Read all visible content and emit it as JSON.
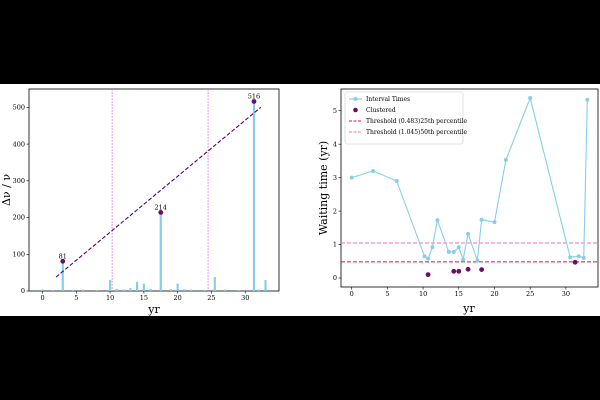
{
  "chart_data": [
    {
      "type": "bar",
      "xlabel": "yr",
      "ylabel": "Δν / ν",
      "xlim": [
        -2,
        35
      ],
      "ylim": [
        0,
        550
      ],
      "xticks": [
        0,
        5,
        10,
        15,
        20,
        25,
        30
      ],
      "yticks": [
        0,
        100,
        200,
        300,
        400,
        500
      ],
      "bars": [
        {
          "x": 0,
          "y": 4
        },
        {
          "x": 1.5,
          "y": 3
        },
        {
          "x": 3,
          "y": 81
        },
        {
          "x": 4.5,
          "y": 3
        },
        {
          "x": 6,
          "y": 4
        },
        {
          "x": 8,
          "y": 3
        },
        {
          "x": 10,
          "y": 30
        },
        {
          "x": 11,
          "y": 6
        },
        {
          "x": 12,
          "y": 4
        },
        {
          "x": 13,
          "y": 8
        },
        {
          "x": 14,
          "y": 25
        },
        {
          "x": 15,
          "y": 20
        },
        {
          "x": 16,
          "y": 6
        },
        {
          "x": 17.5,
          "y": 214
        },
        {
          "x": 19,
          "y": 5
        },
        {
          "x": 20,
          "y": 20
        },
        {
          "x": 21,
          "y": 5
        },
        {
          "x": 22,
          "y": 4
        },
        {
          "x": 24,
          "y": 3
        },
        {
          "x": 25.5,
          "y": 38
        },
        {
          "x": 27,
          "y": 4
        },
        {
          "x": 29,
          "y": 3
        },
        {
          "x": 31.3,
          "y": 516
        },
        {
          "x": 32,
          "y": 4
        },
        {
          "x": 33,
          "y": 30
        }
      ],
      "highlights": [
        {
          "x": 3,
          "y": 81,
          "label": "81"
        },
        {
          "x": 17.5,
          "y": 214,
          "label": "214"
        },
        {
          "x": 31.3,
          "y": 516,
          "label": "516"
        }
      ],
      "trend_line": {
        "x": [
          2,
          32.3
        ],
        "y": [
          38,
          500
        ]
      },
      "vlines": [
        10.3,
        24.5
      ],
      "colors": {
        "bars": "#87ceeb",
        "highlight": "#6a0d6a",
        "trend": "#4b0082",
        "vline": "#da70d6"
      }
    },
    {
      "type": "line",
      "xlabel": "yr",
      "ylabel": "Waiting time (yr)",
      "xlim": [
        -1.5,
        34.5
      ],
      "ylim": [
        -0.27,
        5.65
      ],
      "xticks": [
        0,
        5,
        10,
        15,
        20,
        25,
        30
      ],
      "yticks": [
        0,
        1,
        2,
        3,
        4,
        5
      ],
      "series": [
        {
          "name": "Interval Times",
          "x": [
            0,
            3,
            6.3,
            10.2,
            10.7,
            11.3,
            12.0,
            13.6,
            14.3,
            15.0,
            15.6,
            16.3,
            17.6,
            18.2,
            20.0,
            21.6,
            25.0,
            30.6,
            31.8,
            32.5,
            33.0
          ],
          "y": [
            3.0,
            3.2,
            2.9,
            0.65,
            0.58,
            0.92,
            1.73,
            0.78,
            0.78,
            0.92,
            0.55,
            1.32,
            0.52,
            1.74,
            1.67,
            3.53,
            5.38,
            0.62,
            0.65,
            0.6,
            5.33
          ],
          "color": "#87ceeb"
        },
        {
          "name": "Clustered",
          "x": [
            10.7,
            14.3,
            15.0,
            16.3,
            18.2,
            31.3
          ],
          "y": [
            0.1,
            0.2,
            0.2,
            0.26,
            0.25,
            0.47
          ],
          "color": "#6a0d6a"
        }
      ],
      "hlines": [
        {
          "name": "Threshold (0.483)25th percentile",
          "y": 0.483,
          "color": "#dc143c"
        },
        {
          "name": "Threshold (1.045)50th percentile",
          "y": 1.045,
          "color": "#ff69b4"
        }
      ],
      "legend": "top-left"
    }
  ]
}
